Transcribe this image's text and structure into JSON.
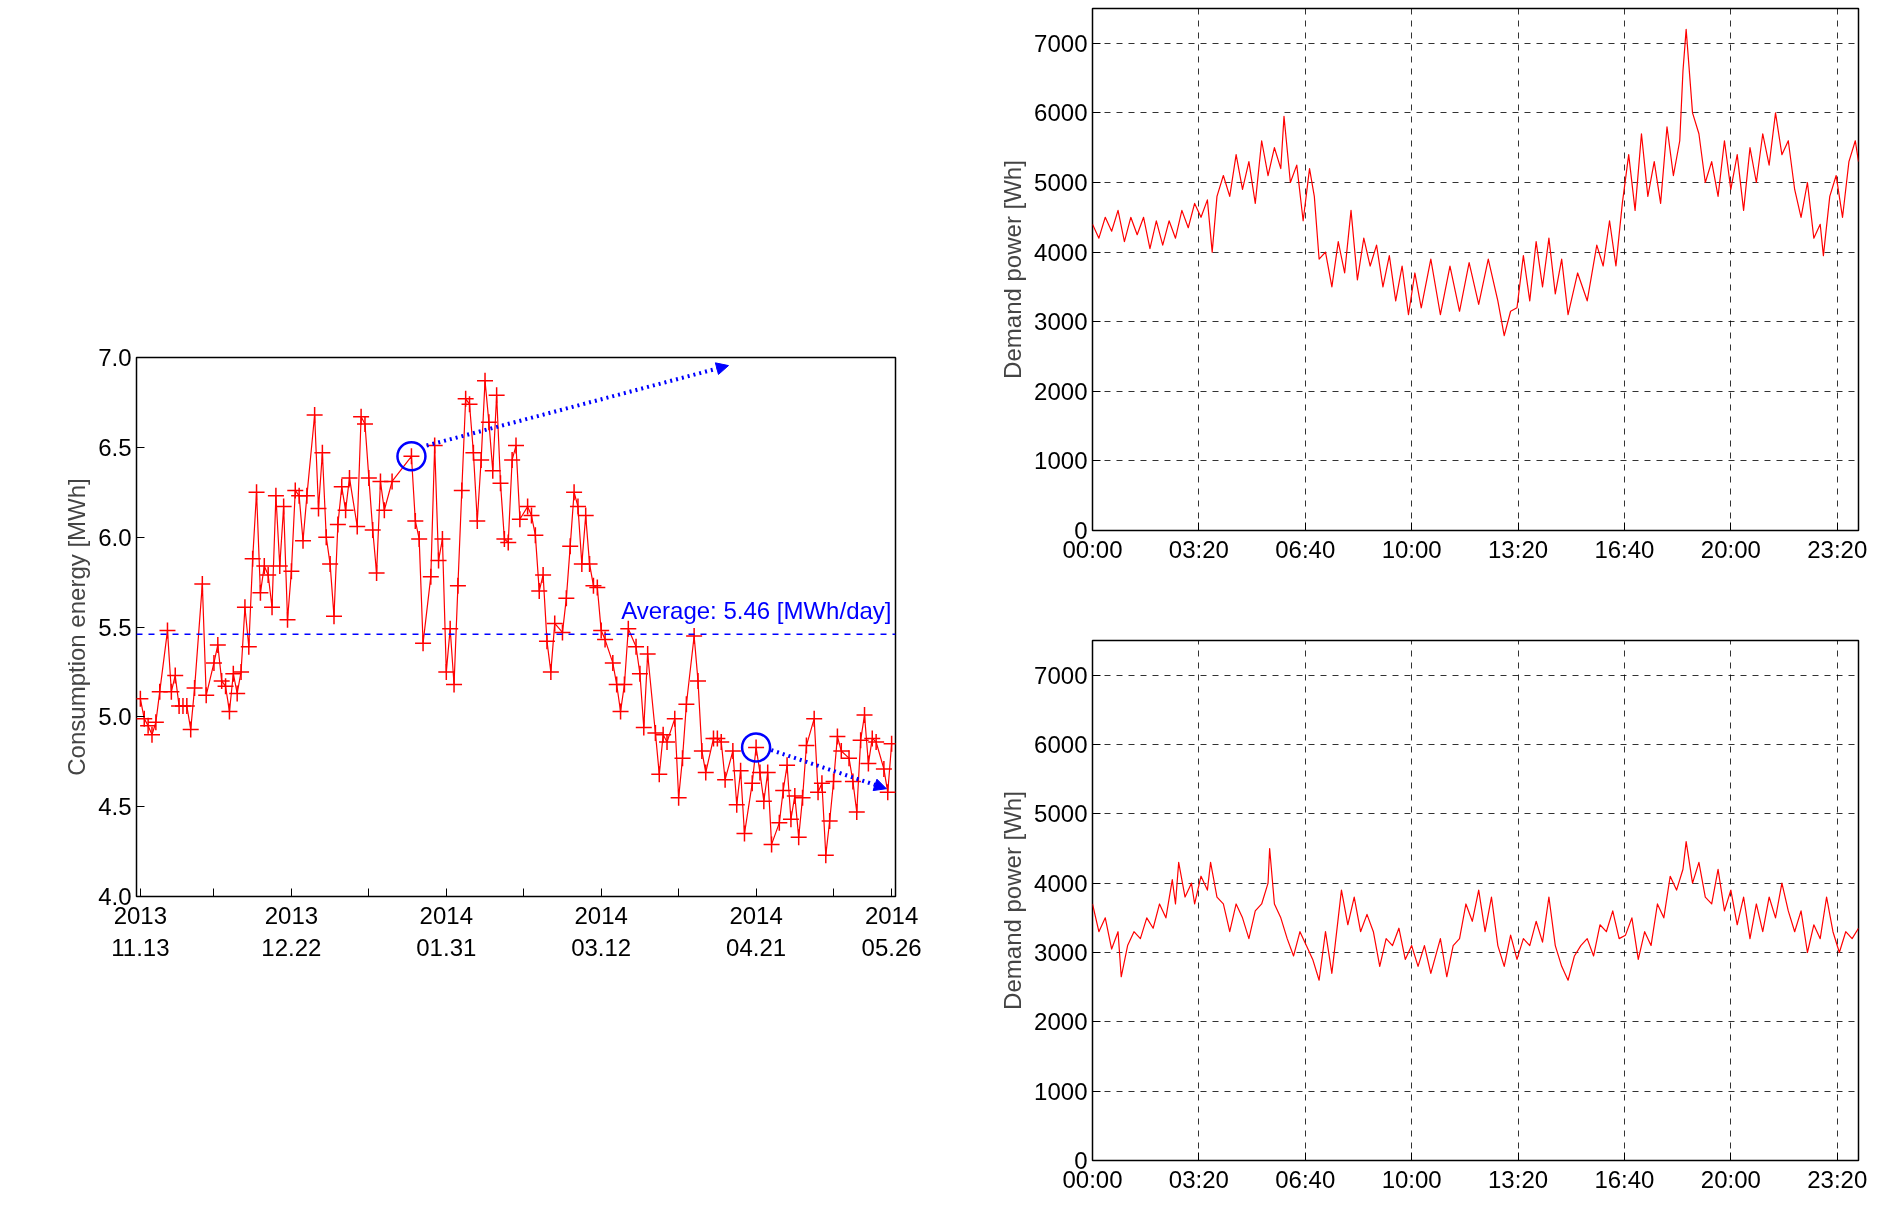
{
  "chart_data": [
    {
      "type": "line",
      "ylabel": "Consumption energy [MWh]",
      "marker": "cross",
      "line_style": "solid",
      "grid": false,
      "x": [
        "2013-11-13",
        "2013-11-14",
        "2013-11-15",
        "2013-11-16",
        "2013-11-17",
        "2013-11-18",
        "2013-11-20",
        "2013-11-21",
        "2013-11-22",
        "2013-11-23",
        "2013-11-24",
        "2013-11-25",
        "2013-11-26",
        "2013-11-27",
        "2013-11-29",
        "2013-11-30",
        "2013-12-02",
        "2013-12-03",
        "2013-12-04",
        "2013-12-05",
        "2013-12-06",
        "2013-12-07",
        "2013-12-08",
        "2013-12-09",
        "2013-12-10",
        "2013-12-11",
        "2013-12-12",
        "2013-12-13",
        "2013-12-14",
        "2013-12-15",
        "2013-12-16",
        "2013-12-17",
        "2013-12-18",
        "2013-12-19",
        "2013-12-20",
        "2013-12-21",
        "2013-12-22",
        "2013-12-23",
        "2013-12-24",
        "2013-12-25",
        "2013-12-26",
        "2013-12-28",
        "2013-12-29",
        "2013-12-30",
        "2013-12-31",
        "2014-01-01",
        "2014-01-02",
        "2014-01-03",
        "2014-01-04",
        "2014-01-05",
        "2014-01-06",
        "2014-01-08",
        "2014-01-09",
        "2014-01-10",
        "2014-01-11",
        "2014-01-12",
        "2014-01-13",
        "2014-01-14",
        "2014-01-15",
        "2014-01-17",
        "2014-01-22",
        "2014-01-23",
        "2014-01-24",
        "2014-01-25",
        "2014-01-27",
        "2014-01-28",
        "2014-01-29",
        "2014-01-30",
        "2014-01-31",
        "2014-02-01",
        "2014-02-02",
        "2014-02-03",
        "2014-02-04",
        "2014-02-05",
        "2014-02-06",
        "2014-02-07",
        "2014-02-08",
        "2014-02-09",
        "2014-02-10",
        "2014-02-11",
        "2014-02-12",
        "2014-02-13",
        "2014-02-14",
        "2014-02-15",
        "2014-02-16",
        "2014-02-17",
        "2014-02-18",
        "2014-02-19",
        "2014-02-21",
        "2014-02-22",
        "2014-02-23",
        "2014-02-24",
        "2014-02-25",
        "2014-02-26",
        "2014-02-27",
        "2014-02-28",
        "2014-03-02",
        "2014-03-03",
        "2014-03-04",
        "2014-03-05",
        "2014-03-06",
        "2014-03-07",
        "2014-03-08",
        "2014-03-09",
        "2014-03-10",
        "2014-03-11",
        "2014-03-12",
        "2014-03-13",
        "2014-03-15",
        "2014-03-16",
        "2014-03-17",
        "2014-03-18",
        "2014-03-19",
        "2014-03-21",
        "2014-03-22",
        "2014-03-23",
        "2014-03-24",
        "2014-03-26",
        "2014-03-27",
        "2014-03-28",
        "2014-03-29",
        "2014-03-31",
        "2014-04-01",
        "2014-04-02",
        "2014-04-03",
        "2014-04-05",
        "2014-04-06",
        "2014-04-07",
        "2014-04-08",
        "2014-04-10",
        "2014-04-11",
        "2014-04-12",
        "2014-04-13",
        "2014-04-15",
        "2014-04-16",
        "2014-04-17",
        "2014-04-18",
        "2014-04-20",
        "2014-04-21",
        "2014-04-22",
        "2014-04-23",
        "2014-04-24",
        "2014-04-25",
        "2014-04-27",
        "2014-04-28",
        "2014-04-29",
        "2014-04-30",
        "2014-05-01",
        "2014-05-02",
        "2014-05-03",
        "2014-05-04",
        "2014-05-06",
        "2014-05-07",
        "2014-05-08",
        "2014-05-09",
        "2014-05-10",
        "2014-05-11",
        "2014-05-12",
        "2014-05-13",
        "2014-05-15",
        "2014-05-16",
        "2014-05-17",
        "2014-05-18",
        "2014-05-19",
        "2014-05-20",
        "2014-05-21",
        "2014-05-22",
        "2014-05-24",
        "2014-05-25",
        "2014-05-26"
      ],
      "series": [
        {
          "color": "#ff0000",
          "values": [
            5.1,
            4.99,
            4.95,
            4.9,
            4.97,
            5.14,
            5.48,
            5.14,
            5.23,
            5.06,
            5.06,
            5.06,
            4.93,
            5.16,
            5.74,
            5.12,
            5.3,
            5.4,
            5.2,
            5.17,
            5.03,
            5.24,
            5.13,
            5.25,
            5.61,
            5.39,
            5.88,
            6.25,
            5.69,
            5.84,
            5.79,
            5.61,
            6.23,
            5.84,
            6.17,
            5.54,
            5.81,
            6.26,
            6.23,
            5.98,
            6.23,
            6.68,
            6.16,
            6.47,
            6.0,
            5.85,
            5.56,
            6.07,
            6.28,
            6.15,
            6.33,
            6.06,
            6.67,
            6.63,
            6.33,
            6.04,
            5.8,
            6.31,
            6.15,
            6.31,
            6.45,
            6.09,
            5.99,
            5.41,
            5.78,
            6.51,
            5.87,
            5.99,
            5.25,
            5.49,
            5.18,
            5.73,
            6.26,
            6.77,
            6.74,
            6.47,
            6.09,
            6.43,
            6.87,
            6.64,
            6.37,
            6.79,
            6.3,
            5.99,
            5.97,
            6.43,
            6.51,
            6.1,
            6.17,
            6.12,
            6.01,
            5.7,
            5.79,
            5.42,
            5.25,
            5.52,
            5.47,
            5.66,
            5.95,
            6.25,
            6.17,
            5.85,
            6.12,
            5.85,
            5.73,
            5.72,
            5.48,
            5.43,
            5.3,
            5.18,
            5.03,
            5.18,
            5.49,
            5.39,
            5.24,
            4.94,
            5.35,
            4.91,
            4.68,
            4.9,
            4.86,
            4.99,
            4.55,
            4.77,
            5.07,
            5.45,
            5.2,
            4.81,
            4.69,
            4.88,
            4.88,
            4.86,
            4.65,
            4.81,
            4.51,
            4.7,
            4.35,
            4.63,
            4.83,
            4.69,
            4.53,
            4.69,
            4.29,
            4.41,
            4.59,
            4.73,
            4.43,
            4.56,
            4.33,
            4.55,
            4.84,
            4.99,
            4.58,
            4.63,
            4.23,
            4.42,
            4.64,
            4.89,
            4.81,
            4.77,
            4.64,
            4.47,
            4.87,
            5.01,
            4.74,
            4.88,
            4.86,
            4.71,
            4.58,
            4.85
          ]
        },
        {
          "type": "scatter",
          "marker": "circle",
          "color": "#0000ff",
          "x": [
            "2014-01-22",
            "2014-04-21"
          ],
          "values": [
            6.45,
            4.83
          ]
        }
      ],
      "xlim": [
        "2013-11-12",
        "2014-05-27"
      ],
      "xticks": [
        {
          "value": "2013-11-13",
          "label": "2013\n11.13"
        },
        {
          "value": "2013-12-02",
          "label": null
        },
        {
          "value": "2013-12-22",
          "label": "2013\n12.22"
        },
        {
          "value": "2014-01-11",
          "label": null
        },
        {
          "value": "2014-01-31",
          "label": "2014\n01.31"
        },
        {
          "value": "2014-02-20",
          "label": null
        },
        {
          "value": "2014-03-12",
          "label": "2014\n03.12"
        },
        {
          "value": "2014-04-01",
          "label": null
        },
        {
          "value": "2014-04-21",
          "label": "2014\n04.21"
        },
        {
          "value": "2014-05-11",
          "label": null
        },
        {
          "value": "2014-05-26",
          "label": "2014\n05.26"
        }
      ],
      "ylim": [
        4.0,
        7.0
      ],
      "yticks": [
        {
          "value": 4.0,
          "label": "4.0"
        },
        {
          "value": 4.5,
          "label": "4.5"
        },
        {
          "value": 5.0,
          "label": "5.0"
        },
        {
          "value": 5.5,
          "label": "5.5"
        },
        {
          "value": 6.0,
          "label": "6.0"
        },
        {
          "value": 6.5,
          "label": "6.5"
        },
        {
          "value": 7.0,
          "label": "7.0"
        }
      ],
      "ref_lines": [
        {
          "axis": "y",
          "value": 5.46,
          "label": "Average: 5.46 [MWh/day]",
          "color": "#0000ff",
          "line_style": "dashed"
        }
      ]
    },
    {
      "type": "line",
      "ylabel": "Demand power [Wh]",
      "line_style": "solid",
      "grid": true,
      "x": [
        0.0,
        0.2,
        0.4,
        0.6,
        0.8,
        1.0,
        1.2,
        1.4,
        1.6,
        1.8,
        2.0,
        2.2,
        2.4,
        2.6,
        2.8,
        3.0,
        3.2,
        3.4,
        3.6,
        3.75,
        3.9,
        4.1,
        4.3,
        4.5,
        4.7,
        4.9,
        5.1,
        5.3,
        5.5,
        5.7,
        5.9,
        6.0,
        6.2,
        6.4,
        6.6,
        6.8,
        6.95,
        7.1,
        7.3,
        7.5,
        7.7,
        7.9,
        8.1,
        8.3,
        8.5,
        8.7,
        8.9,
        9.1,
        9.3,
        9.5,
        9.7,
        9.9,
        10.1,
        10.3,
        10.6,
        10.9,
        11.2,
        11.5,
        11.8,
        12.1,
        12.4,
        12.7,
        12.9,
        13.1,
        13.3,
        13.5,
        13.7,
        13.9,
        14.1,
        14.3,
        14.5,
        14.7,
        14.9,
        15.2,
        15.5,
        15.8,
        16.0,
        16.2,
        16.4,
        16.6,
        16.8,
        17.0,
        17.2,
        17.4,
        17.6,
        17.8,
        18.0,
        18.2,
        18.4,
        18.5,
        18.6,
        18.8,
        19.0,
        19.2,
        19.4,
        19.6,
        19.8,
        20.0,
        20.2,
        20.4,
        20.6,
        20.8,
        21.0,
        21.2,
        21.4,
        21.6,
        21.8,
        22.0,
        22.2,
        22.4,
        22.6,
        22.8,
        22.9,
        23.1,
        23.3,
        23.5,
        23.7,
        23.9,
        24.0
      ],
      "series": [
        {
          "color": "#ff0000",
          "values": [
            4400,
            4200,
            4500,
            4300,
            4600,
            4150,
            4500,
            4250,
            4500,
            4050,
            4450,
            4100,
            4450,
            4200,
            4600,
            4350,
            4700,
            4500,
            4750,
            4000,
            4800,
            5100,
            4800,
            5400,
            4900,
            5300,
            4700,
            5600,
            5100,
            5500,
            5200,
            5950,
            5000,
            5250,
            4450,
            5200,
            4800,
            3900,
            4000,
            3500,
            4150,
            3700,
            4600,
            3600,
            4200,
            3800,
            4100,
            3500,
            3950,
            3300,
            3800,
            3100,
            3700,
            3200,
            3900,
            3100,
            3800,
            3150,
            3850,
            3250,
            3900,
            3300,
            2800,
            3150,
            3200,
            3950,
            3300,
            4150,
            3500,
            4200,
            3400,
            3900,
            3100,
            3700,
            3300,
            4100,
            3800,
            4450,
            3800,
            4700,
            5400,
            4600,
            5700,
            4800,
            5300,
            4700,
            5800,
            5100,
            5600,
            6600,
            7200,
            6000,
            5700,
            5000,
            5300,
            4800,
            5600,
            4900,
            5400,
            4600,
            5500,
            5000,
            5700,
            5250,
            6000,
            5400,
            5600,
            4900,
            4500,
            5000,
            4200,
            4400,
            3950,
            4800,
            5100,
            4500,
            5300,
            5600,
            5300
          ]
        }
      ],
      "xlim": [
        0,
        24
      ],
      "xticks": [
        {
          "value": 0,
          "label": "00:00"
        },
        {
          "value": 3.3333,
          "label": "03:20"
        },
        {
          "value": 6.6667,
          "label": "06:40"
        },
        {
          "value": 10,
          "label": "10:00"
        },
        {
          "value": 13.3333,
          "label": "13:20"
        },
        {
          "value": 16.6667,
          "label": "16:40"
        },
        {
          "value": 20,
          "label": "20:00"
        },
        {
          "value": 23.3333,
          "label": "23:20"
        }
      ],
      "ylim": [
        0,
        7500
      ],
      "yticks": [
        0,
        1000,
        2000,
        3000,
        4000,
        5000,
        6000,
        7000
      ]
    },
    {
      "type": "line",
      "ylabel": "Demand power [Wh]",
      "line_style": "solid",
      "grid": true,
      "x": [
        0.0,
        0.2,
        0.4,
        0.6,
        0.8,
        0.9,
        1.1,
        1.3,
        1.5,
        1.7,
        1.9,
        2.1,
        2.3,
        2.5,
        2.6,
        2.7,
        2.9,
        3.1,
        3.2,
        3.4,
        3.6,
        3.7,
        3.9,
        4.1,
        4.3,
        4.5,
        4.7,
        4.9,
        5.1,
        5.3,
        5.5,
        5.55,
        5.7,
        5.9,
        6.1,
        6.3,
        6.5,
        6.7,
        6.9,
        7.1,
        7.3,
        7.5,
        7.6,
        7.8,
        8.0,
        8.2,
        8.4,
        8.6,
        8.8,
        9.0,
        9.2,
        9.4,
        9.6,
        9.8,
        10.0,
        10.2,
        10.4,
        10.6,
        10.9,
        11.1,
        11.3,
        11.5,
        11.7,
        11.9,
        12.1,
        12.3,
        12.5,
        12.7,
        12.9,
        13.1,
        13.3,
        13.5,
        13.7,
        13.9,
        14.1,
        14.3,
        14.5,
        14.7,
        14.9,
        15.1,
        15.3,
        15.5,
        15.7,
        15.9,
        16.1,
        16.3,
        16.5,
        16.7,
        16.9,
        17.1,
        17.3,
        17.5,
        17.7,
        17.9,
        18.1,
        18.3,
        18.5,
        18.6,
        18.8,
        19.0,
        19.2,
        19.4,
        19.6,
        19.8,
        20.0,
        20.2,
        20.4,
        20.6,
        20.8,
        21.0,
        21.2,
        21.4,
        21.6,
        21.8,
        22.0,
        22.2,
        22.4,
        22.6,
        22.8,
        23.0,
        23.2,
        23.4,
        23.6,
        23.8,
        24.0
      ],
      "series": [
        {
          "color": "#ff0000",
          "values": [
            3700,
            3300,
            3500,
            3050,
            3300,
            2650,
            3100,
            3300,
            3200,
            3500,
            3350,
            3700,
            3500,
            4050,
            3700,
            4300,
            3800,
            4000,
            3700,
            4100,
            3900,
            4300,
            3800,
            3700,
            3300,
            3700,
            3500,
            3200,
            3600,
            3700,
            4000,
            4500,
            3700,
            3500,
            3200,
            2950,
            3300,
            3100,
            2900,
            2600,
            3300,
            2700,
            3100,
            3900,
            3400,
            3800,
            3300,
            3550,
            3300,
            2800,
            3200,
            3100,
            3350,
            2900,
            3100,
            2800,
            3100,
            2700,
            3200,
            2650,
            3100,
            3200,
            3700,
            3450,
            3900,
            3300,
            3800,
            3100,
            2800,
            3250,
            2900,
            3200,
            3100,
            3450,
            3150,
            3800,
            3100,
            2800,
            2600,
            2950,
            3100,
            3200,
            2950,
            3400,
            3300,
            3600,
            3200,
            3250,
            3500,
            2900,
            3300,
            3100,
            3700,
            3500,
            4100,
            3900,
            4200,
            4600,
            4000,
            4300,
            3800,
            3700,
            4200,
            3600,
            3900,
            3400,
            3800,
            3200,
            3700,
            3300,
            3800,
            3500,
            4000,
            3600,
            3300,
            3600,
            3000,
            3400,
            3200,
            3800,
            3300,
            3000,
            3300,
            3200,
            3350
          ]
        }
      ],
      "xlim": [
        0,
        24
      ],
      "xticks": [
        {
          "value": 0,
          "label": "00:00"
        },
        {
          "value": 3.3333,
          "label": "03:20"
        },
        {
          "value": 6.6667,
          "label": "06:40"
        },
        {
          "value": 10,
          "label": "10:00"
        },
        {
          "value": 13.3333,
          "label": "13:20"
        },
        {
          "value": 16.6667,
          "label": "16:40"
        },
        {
          "value": 20,
          "label": "20:00"
        },
        {
          "value": 23.3333,
          "label": "23:20"
        }
      ],
      "ylim": [
        0,
        7500
      ],
      "yticks": [
        0,
        1000,
        2000,
        3000,
        4000,
        5000,
        6000,
        7000
      ]
    }
  ]
}
